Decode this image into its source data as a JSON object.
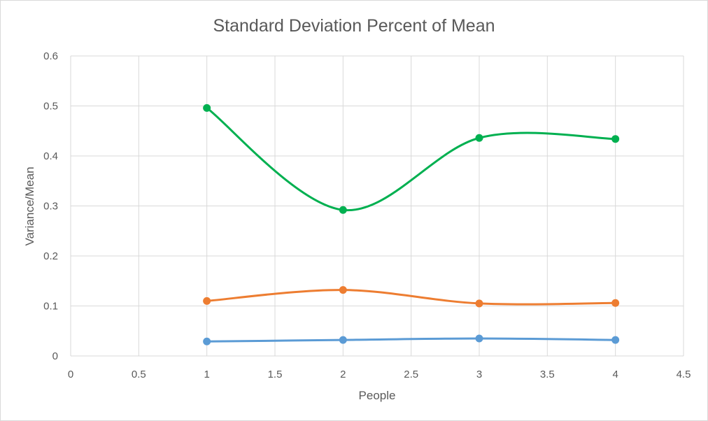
{
  "chart_data": {
    "type": "scatter",
    "title": "Standard Deviation Percent of Mean",
    "xlabel": "People",
    "ylabel": "Variance/Mean",
    "xlim": [
      0,
      4.5
    ],
    "ylim": [
      0,
      0.6
    ],
    "x_ticks": [
      "0",
      "0.5",
      "1",
      "1.5",
      "2",
      "2.5",
      "3",
      "3.5",
      "4",
      "4.5"
    ],
    "y_ticks": [
      "0",
      "0.1",
      "0.2",
      "0.3",
      "0.4",
      "0.5",
      "0.6"
    ],
    "grid": true,
    "smoothed_lines": true,
    "legend": "none",
    "series": [
      {
        "color": "#5b9bd5",
        "x": [
          1,
          2,
          3,
          4
        ],
        "values": [
          0.029,
          0.032,
          0.035,
          0.032
        ]
      },
      {
        "color": "#ed7d31",
        "x": [
          1,
          2,
          3,
          4
        ],
        "values": [
          0.11,
          0.132,
          0.105,
          0.106
        ]
      },
      {
        "color": "#00b050",
        "x": [
          1,
          2,
          3,
          4
        ],
        "values": [
          0.496,
          0.292,
          0.436,
          0.434
        ]
      }
    ]
  }
}
